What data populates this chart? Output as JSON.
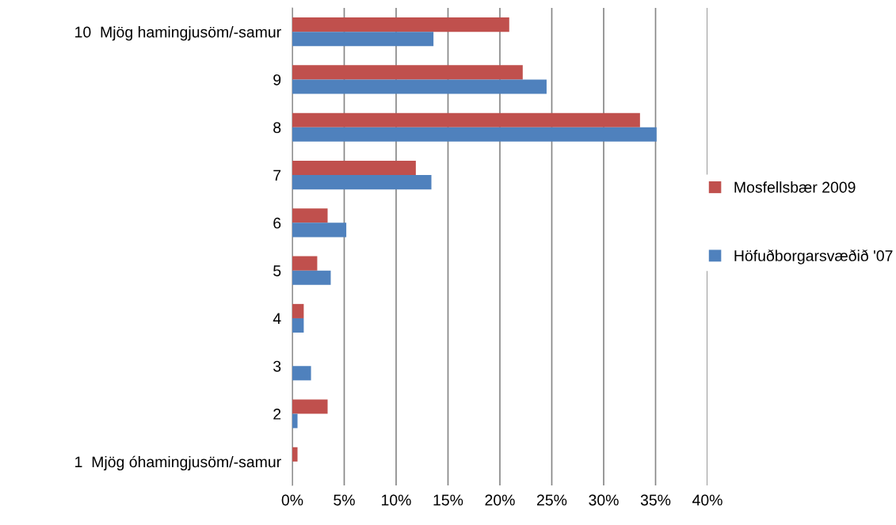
{
  "chart_data": {
    "type": "bar",
    "orientation": "horizontal",
    "categories": [
      "10  Mjög hamingjusöm/-samur",
      "9",
      "8",
      "7",
      "6",
      "5",
      "4",
      "3",
      "2",
      "1  Mjög óhamingjusöm/-samur"
    ],
    "series": [
      {
        "name": "Mosfellsbær 2009",
        "color": "#c0504d",
        "values": [
          20.9,
          22.2,
          33.5,
          11.9,
          3.4,
          2.4,
          1.1,
          0,
          3.4,
          0.5
        ]
      },
      {
        "name": "Höfuðborgarsvæðið '07",
        "color": "#4f81bd",
        "values": [
          13.6,
          24.5,
          35.1,
          13.4,
          5.2,
          3.7,
          1.1,
          1.8,
          0.5,
          0
        ]
      }
    ],
    "xlim": [
      0,
      40
    ],
    "xticks": [
      {
        "value": 0,
        "label": "0%"
      },
      {
        "value": 5,
        "label": "5%"
      },
      {
        "value": 10,
        "label": "10%"
      },
      {
        "value": 15,
        "label": "15%"
      },
      {
        "value": 20,
        "label": "20%"
      },
      {
        "value": 25,
        "label": "25%"
      },
      {
        "value": 30,
        "label": "30%"
      },
      {
        "value": 35,
        "label": "35%"
      },
      {
        "value": 40,
        "label": "40%"
      }
    ],
    "grid": "x",
    "legend": "right"
  }
}
